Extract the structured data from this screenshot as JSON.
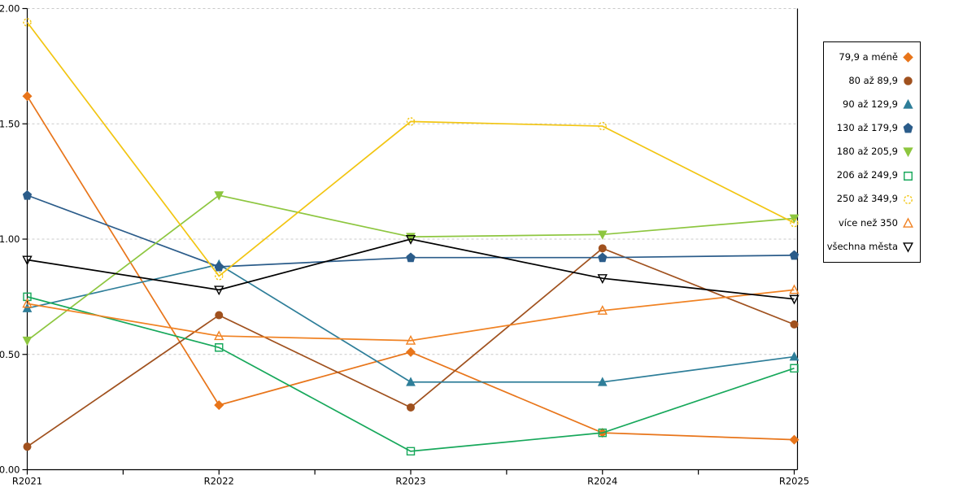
{
  "chart_data": {
    "type": "line",
    "title": "",
    "xlabel": "",
    "ylabel": "",
    "categories": [
      "R2021",
      "R2022",
      "R2023",
      "R2024",
      "R2025"
    ],
    "series": [
      {
        "name": "79,9 a méně",
        "color": "#E8751A",
        "marker": "diamond",
        "marker_fill": "solid",
        "values": [
          1.62,
          0.28,
          0.51,
          0.16,
          0.13
        ]
      },
      {
        "name": "80 až 89,9",
        "color": "#A0511E",
        "marker": "circle",
        "marker_fill": "solid",
        "values": [
          0.1,
          0.67,
          0.27,
          0.96,
          0.63
        ]
      },
      {
        "name": "90 až 129,9",
        "color": "#2E7E99",
        "marker": "triangle-up",
        "marker_fill": "solid",
        "values": [
          0.7,
          0.89,
          0.38,
          0.38,
          0.49
        ]
      },
      {
        "name": "130 až 179,9",
        "color": "#2B5C8A",
        "marker": "pentagon",
        "marker_fill": "solid",
        "values": [
          1.19,
          0.88,
          0.92,
          0.92,
          0.93
        ]
      },
      {
        "name": "180 až 205,9",
        "color": "#8DC63F",
        "marker": "triangle-down",
        "marker_fill": "solid",
        "values": [
          0.56,
          1.19,
          1.01,
          1.02,
          1.09
        ]
      },
      {
        "name": "206 až 249,9",
        "color": "#17A85B",
        "marker": "square",
        "marker_fill": "open",
        "values": [
          0.75,
          0.53,
          0.08,
          0.16,
          0.44
        ]
      },
      {
        "name": "250 až 349,9",
        "color": "#F2C511",
        "marker": "circle",
        "marker_fill": "open",
        "marker_dashed": true,
        "values": [
          1.94,
          0.84,
          1.51,
          1.49,
          1.07
        ]
      },
      {
        "name": "více než 350",
        "color": "#F08223",
        "marker": "triangle-up",
        "marker_fill": "open",
        "values": [
          0.72,
          0.58,
          0.56,
          0.69,
          0.78
        ]
      },
      {
        "name": "všechna města",
        "color": "#000000",
        "marker": "triangle-down",
        "marker_fill": "open",
        "values": [
          0.91,
          0.78,
          1.0,
          0.83,
          0.74
        ]
      }
    ],
    "ylim": [
      0,
      2
    ],
    "y_tick_step": 0.5,
    "y_ticks": [
      "0.00",
      "0.50",
      "1.00",
      "1.50",
      "2.00"
    ],
    "grid": "horizontal dashed",
    "legend_position": "right"
  },
  "style": {
    "gridline_color": "#c9c9c9",
    "axis_color": "#000000",
    "text_color": "#000000",
    "background": "#ffffff"
  }
}
